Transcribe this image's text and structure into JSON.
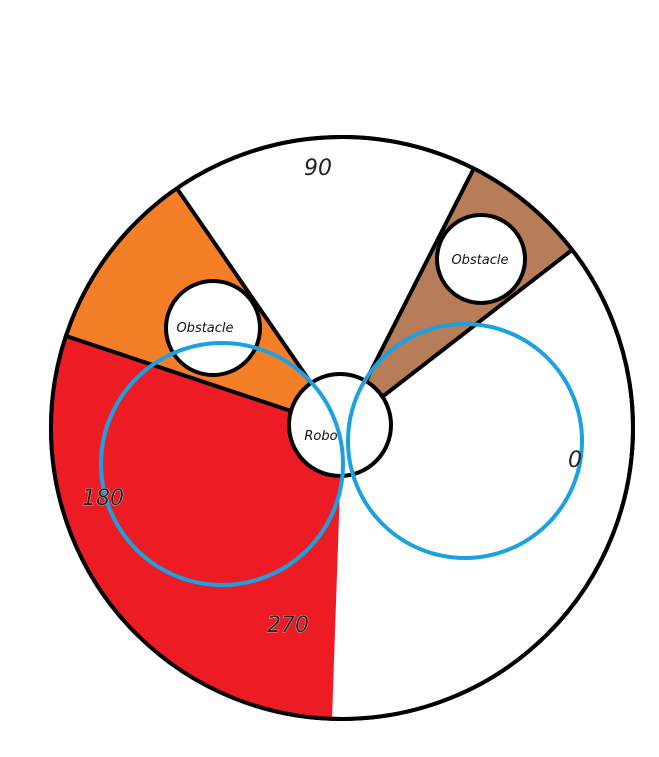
{
  "colors": {
    "outline": "#000000",
    "sector_free": "#ffffff",
    "sector_left_obstacle": "#f57f27",
    "sector_right_obstacle": "#b77c58",
    "sector_red": "#ed1c24",
    "range_circles": "#1ba1e2"
  },
  "angle_labels": {
    "a0": "0",
    "a90": "90",
    "a180": "180",
    "a270": "270"
  },
  "obstacles": {
    "left": "Obstacle",
    "right": "Obstacle"
  },
  "robot": {
    "label": "Robo"
  }
}
